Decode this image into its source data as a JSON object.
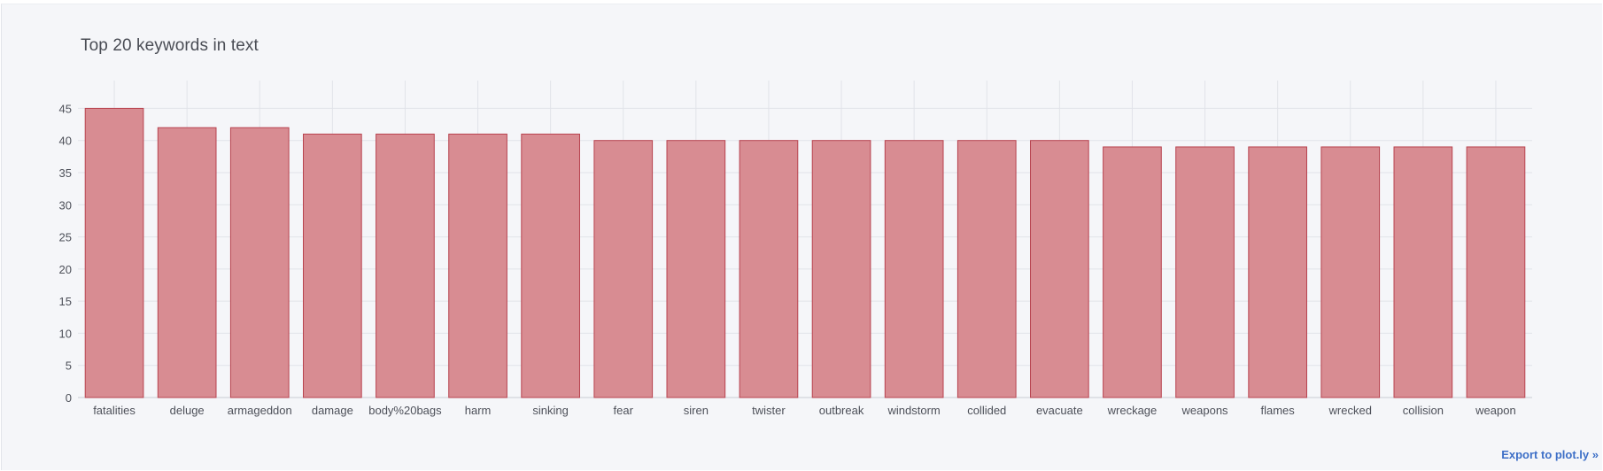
{
  "chart_data": {
    "type": "bar",
    "title": "Top 20 keywords in text",
    "xlabel": "",
    "ylabel": "",
    "categories": [
      "fatalities",
      "deluge",
      "armageddon",
      "damage",
      "body%20bags",
      "harm",
      "sinking",
      "fear",
      "siren",
      "twister",
      "outbreak",
      "windstorm",
      "collided",
      "evacuate",
      "wreckage",
      "weapons",
      "flames",
      "wrecked",
      "collision",
      "weapon"
    ],
    "values": [
      45,
      42,
      42,
      41,
      41,
      41,
      41,
      40,
      40,
      40,
      40,
      40,
      40,
      40,
      39,
      39,
      39,
      39,
      39,
      39
    ],
    "ylim": [
      0,
      47.4
    ],
    "yticks": [
      0,
      5,
      10,
      15,
      20,
      25,
      30,
      35,
      40,
      45
    ],
    "grid": true,
    "legend": "none",
    "colors": {
      "bar_fill": "#d88c92",
      "bar_stroke": "#b8434f",
      "grid": "#e1e3e9",
      "background": "#f5f6f9"
    }
  },
  "export_link": {
    "label": "Export to plot.ly »"
  }
}
